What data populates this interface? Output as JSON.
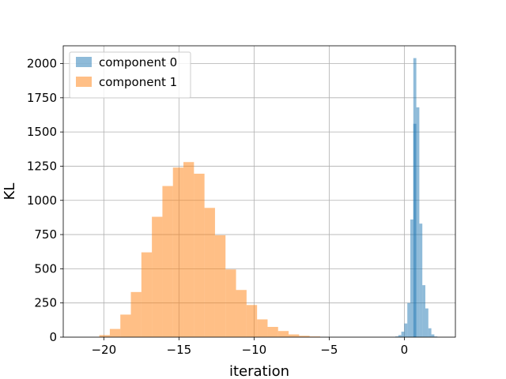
{
  "chart_data": {
    "type": "histogram",
    "title": "",
    "xlabel": "iteration",
    "ylabel": "KL",
    "xlim": [
      -22.7,
      3.4
    ],
    "ylim": [
      0,
      2130
    ],
    "xticks": [
      -20,
      -15,
      -10,
      -5,
      0
    ],
    "yticks": [
      0,
      250,
      500,
      750,
      1000,
      1250,
      1500,
      1750,
      2000
    ],
    "grid": true,
    "legend_position": "top-left",
    "series": [
      {
        "name": "component 0",
        "color": "#1f77b4",
        "alpha": 0.5,
        "bins": [
          [
            -0.6,
            -0.4,
            5
          ],
          [
            -0.4,
            -0.2,
            15
          ],
          [
            -0.2,
            0.0,
            40
          ],
          [
            0.0,
            0.2,
            100
          ],
          [
            0.2,
            0.4,
            250
          ],
          [
            0.4,
            0.6,
            860
          ],
          [
            0.6,
            0.8,
            1560
          ],
          [
            0.8,
            1.0,
            1680
          ],
          [
            1.0,
            1.2,
            830
          ],
          [
            1.2,
            1.4,
            380
          ],
          [
            1.4,
            1.6,
            210
          ],
          [
            1.6,
            1.8,
            65
          ],
          [
            1.8,
            2.0,
            20
          ],
          [
            2.0,
            2.2,
            5
          ]
        ],
        "extra_bins": [
          [
            0.6,
            0.8,
            2040
          ]
        ]
      },
      {
        "name": "component 1",
        "color": "#ff7f0e",
        "alpha": 0.5,
        "bins": [
          [
            -20.3,
            -19.6,
            15
          ],
          [
            -19.6,
            -18.9,
            60
          ],
          [
            -18.9,
            -18.2,
            165
          ],
          [
            -18.2,
            -17.5,
            330
          ],
          [
            -17.5,
            -16.8,
            620
          ],
          [
            -16.8,
            -16.1,
            880
          ],
          [
            -16.1,
            -15.4,
            1105
          ],
          [
            -15.4,
            -14.7,
            1240
          ],
          [
            -14.7,
            -14.0,
            1280
          ],
          [
            -14.0,
            -13.3,
            1195
          ],
          [
            -13.3,
            -12.6,
            945
          ],
          [
            -12.6,
            -11.9,
            745
          ],
          [
            -11.9,
            -11.2,
            495
          ],
          [
            -11.2,
            -10.5,
            345
          ],
          [
            -10.5,
            -9.8,
            235
          ],
          [
            -9.8,
            -9.1,
            130
          ],
          [
            -9.1,
            -8.4,
            75
          ],
          [
            -8.4,
            -7.7,
            45
          ],
          [
            -7.7,
            -7.0,
            20
          ],
          [
            -7.0,
            -6.3,
            10
          ],
          [
            -6.3,
            -5.6,
            5
          ]
        ]
      }
    ]
  }
}
